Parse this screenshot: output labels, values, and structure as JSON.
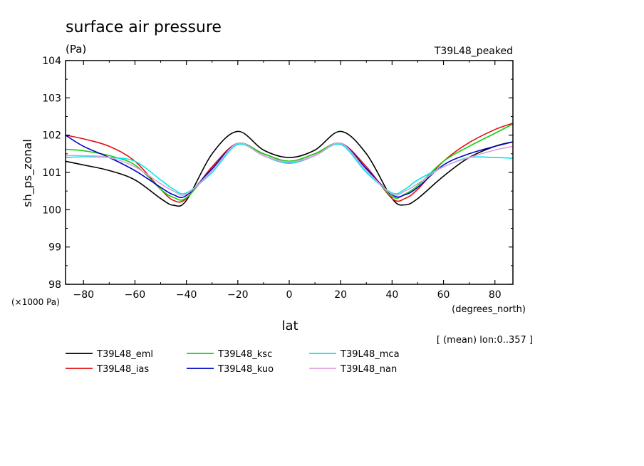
{
  "chart_data": {
    "type": "line",
    "title": "surface air pressure",
    "units": "(Pa)",
    "experiment": "T39L48_peaked",
    "ylabel": "sh_ps_zonal",
    "xlabel": "lat",
    "x_units": "(degrees_north)",
    "y_scale_note": "(×1000 Pa)",
    "averaging_note": "[ (mean) lon:0..357 ]",
    "xlim": [
      -87,
      87
    ],
    "ylim": [
      98,
      104
    ],
    "x_ticks": [
      -80,
      -60,
      -40,
      -20,
      0,
      20,
      40,
      60,
      80
    ],
    "x_tick_labels": [
      "−80",
      "−60",
      "−40",
      "−20",
      "0",
      "20",
      "40",
      "60",
      "80"
    ],
    "y_ticks": [
      98,
      99,
      100,
      101,
      102,
      103,
      104
    ],
    "y_tick_labels": [
      "98",
      "99",
      "100",
      "101",
      "102",
      "103",
      "104"
    ],
    "x": [
      -87,
      -80,
      -70,
      -60,
      -50,
      -45,
      -40,
      -30,
      -20,
      -10,
      0,
      10,
      20,
      30,
      40,
      45,
      50,
      60,
      70,
      80,
      87
    ],
    "series": [
      {
        "name": "T39L48_eml",
        "color": "#000000",
        "values": [
          101.3,
          101.2,
          101.05,
          100.8,
          100.3,
          100.12,
          100.25,
          101.5,
          102.1,
          101.6,
          101.4,
          101.6,
          102.1,
          101.5,
          100.3,
          100.13,
          100.3,
          100.9,
          101.4,
          101.7,
          101.82
        ]
      },
      {
        "name": "T39L48_ias",
        "color": "#e01010",
        "values": [
          102.0,
          101.9,
          101.7,
          101.3,
          100.55,
          100.25,
          100.3,
          101.15,
          101.78,
          101.5,
          101.3,
          101.5,
          101.78,
          101.15,
          100.3,
          100.3,
          100.55,
          101.3,
          101.8,
          102.15,
          102.32
        ]
      },
      {
        "name": "T39L48_ksc",
        "color": "#10d010",
        "values": [
          101.62,
          101.58,
          101.45,
          101.2,
          100.55,
          100.33,
          100.32,
          101.1,
          101.78,
          101.5,
          101.3,
          101.5,
          101.78,
          101.1,
          100.35,
          100.42,
          100.65,
          101.3,
          101.7,
          102.05,
          102.3
        ]
      },
      {
        "name": "T39L48_kuo",
        "color": "#0000c0",
        "values": [
          102.0,
          101.7,
          101.4,
          101.05,
          100.6,
          100.4,
          100.38,
          101.1,
          101.78,
          101.45,
          101.25,
          101.45,
          101.78,
          101.1,
          100.4,
          100.4,
          100.6,
          101.2,
          101.5,
          101.7,
          101.82
        ]
      },
      {
        "name": "T39L48_mca",
        "color": "#00e8e8",
        "values": [
          101.4,
          101.42,
          101.4,
          101.3,
          100.8,
          100.55,
          100.45,
          101.0,
          101.75,
          101.45,
          101.25,
          101.45,
          101.75,
          101.0,
          100.45,
          100.55,
          100.8,
          101.15,
          101.4,
          101.4,
          101.38
        ]
      },
      {
        "name": "T39L48_nan",
        "color": "#e0a0e0",
        "values": [
          101.45,
          101.45,
          101.4,
          101.15,
          100.7,
          100.5,
          100.42,
          101.05,
          101.78,
          101.45,
          101.28,
          101.45,
          101.78,
          101.05,
          100.42,
          100.5,
          100.7,
          101.15,
          101.4,
          101.6,
          101.7
        ]
      }
    ]
  }
}
